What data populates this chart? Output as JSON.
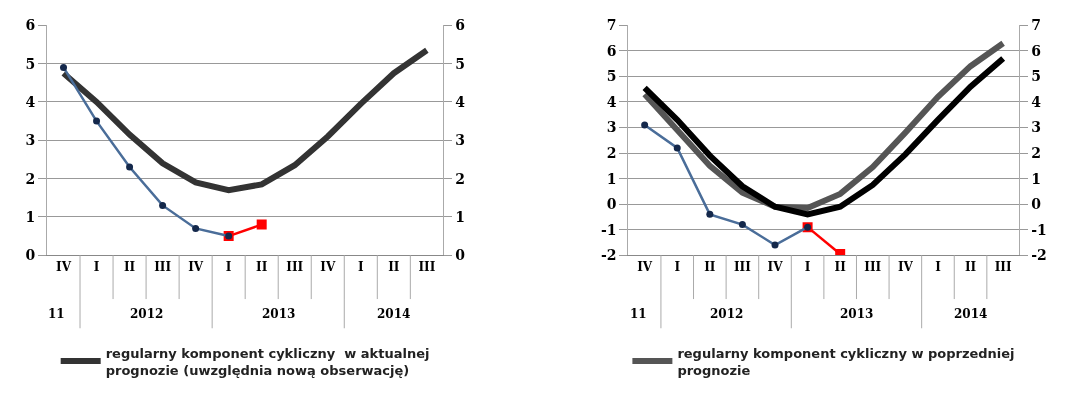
{
  "chart_data": [
    {
      "type": "line",
      "categories": [
        "IV",
        "I",
        "II",
        "III",
        "IV",
        "I",
        "II",
        "III",
        "IV",
        "I",
        "II",
        "III"
      ],
      "series": [
        {
          "name": "regularny komponent cykliczny  w aktualnej prognozie (uwzględnia nową obserwację)",
          "color": "#333333",
          "marker": "none",
          "values": [
            4.75,
            4.0,
            3.15,
            2.4,
            1.9,
            1.7,
            1.85,
            2.35,
            3.1,
            3.95,
            4.75,
            5.35
          ]
        },
        {
          "color": "#ff0000",
          "marker": "square",
          "values": [
            null,
            null,
            null,
            null,
            null,
            0.5,
            0.8,
            null,
            null,
            null,
            null,
            null
          ]
        },
        {
          "color": "#4a6d99",
          "marker": "circle",
          "values": [
            4.9,
            3.5,
            2.3,
            1.3,
            0.7,
            0.5,
            null,
            null,
            null,
            null,
            null,
            null
          ]
        }
      ],
      "ylim": [
        0,
        6
      ],
      "yticks": [
        0,
        1,
        2,
        3,
        4,
        5,
        6
      ],
      "y2lim": [
        0,
        6
      ],
      "y2ticks": [
        0,
        1,
        2,
        3,
        4,
        5,
        6
      ],
      "grid": "y",
      "legend": "bottom",
      "annotations": [
        "11",
        "2012",
        "2013",
        "2014"
      ]
    },
    {
      "type": "line",
      "categories": [
        "IV",
        "I",
        "II",
        "III",
        "IV",
        "I",
        "II",
        "III",
        "IV",
        "I",
        "II",
        "III"
      ],
      "series": [
        {
          "name": "regularny komponent cykliczny w poprzedniej prognozie",
          "color": "#555555",
          "marker": "none",
          "values": [
            4.3,
            2.9,
            1.5,
            0.45,
            -0.1,
            -0.15,
            0.4,
            1.45,
            2.8,
            4.2,
            5.4,
            6.3
          ]
        },
        {
          "color": "#000000",
          "marker": "none",
          "values": [
            4.55,
            3.3,
            1.9,
            0.7,
            -0.1,
            -0.4,
            -0.1,
            0.75,
            1.95,
            3.3,
            4.6,
            5.7
          ]
        },
        {
          "color": "#ff0000",
          "marker": "square",
          "values": [
            null,
            null,
            null,
            null,
            null,
            -0.9,
            -1.95,
            null,
            null,
            null,
            null,
            null
          ]
        },
        {
          "color": "#4a6d99",
          "marker": "circle",
          "values": [
            3.1,
            2.2,
            -0.4,
            -0.8,
            -1.6,
            -0.9,
            null,
            null,
            null,
            null,
            null,
            null
          ]
        }
      ],
      "ylim": [
        -2,
        7
      ],
      "yticks": [
        -2,
        -1,
        0,
        1,
        2,
        3,
        4,
        5,
        6,
        7
      ],
      "y2lim": [
        -2,
        7
      ],
      "y2ticks": [
        -2,
        -1,
        0,
        1,
        2,
        3,
        4,
        5,
        6,
        7
      ],
      "grid": "y",
      "legend": "bottom",
      "annotations": [
        "11",
        "2012",
        "2013",
        "2014"
      ]
    }
  ]
}
